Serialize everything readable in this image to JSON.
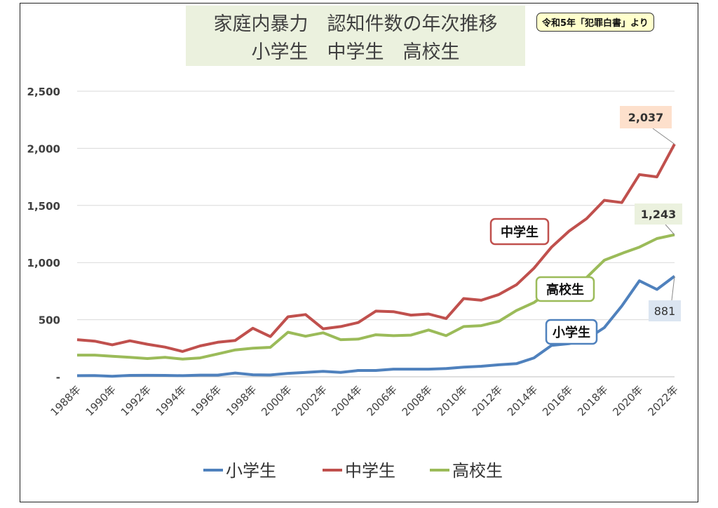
{
  "title_line1": "家庭内暴力　認知件数の年次推移",
  "title_line2": "小学生　中学生　高校生",
  "source_note": "令和5年「犯罪白書」より",
  "colors": {
    "elementary": "#4f81bd",
    "junior_high": "#c0504d",
    "high_school": "#9bbb59"
  },
  "chart_data": {
    "type": "line",
    "title": "家庭内暴力　認知件数の年次推移",
    "subtitle": "小学生　中学生　高校生",
    "x": [
      1988,
      1989,
      1990,
      1991,
      1992,
      1993,
      1994,
      1995,
      1996,
      1997,
      1998,
      1999,
      2000,
      2001,
      2002,
      2003,
      2004,
      2005,
      2006,
      2007,
      2008,
      2009,
      2010,
      2011,
      2012,
      2013,
      2014,
      2015,
      2016,
      2017,
      2018,
      2019,
      2020,
      2021,
      2022
    ],
    "tick_labels": [
      "1988年",
      "1990年",
      "1992年",
      "1994年",
      "1996年",
      "1998年",
      "2000年",
      "2002年",
      "2004年",
      "2006年",
      "2008年",
      "2010年",
      "2012年",
      "2014年",
      "2016年",
      "2018年",
      "2020年",
      "2022年"
    ],
    "y_ticks": [
      "-",
      "500",
      "1,000",
      "1,500",
      "2,000",
      "2,500"
    ],
    "ylim": [
      0,
      2500
    ],
    "grid": true,
    "legend_position": "bottom",
    "series": [
      {
        "name": "小学生",
        "key": "elementary",
        "values": [
          10,
          11,
          5,
          12,
          13,
          12,
          10,
          15,
          15,
          33,
          18,
          16,
          30,
          38,
          47,
          38,
          55,
          55,
          67,
          67,
          67,
          72,
          85,
          92,
          105,
          115,
          165,
          275,
          290,
          330,
          430,
          620,
          840,
          765,
          881
        ]
      },
      {
        "name": "中学生",
        "key": "junior_high",
        "values": [
          325,
          312,
          280,
          315,
          285,
          260,
          222,
          270,
          302,
          318,
          425,
          352,
          525,
          545,
          420,
          440,
          475,
          575,
          570,
          540,
          550,
          510,
          685,
          670,
          720,
          805,
          950,
          1135,
          1275,
          1385,
          1545,
          1525,
          1770,
          1750,
          2037
        ]
      },
      {
        "name": "高校生",
        "key": "high_school",
        "values": [
          190,
          190,
          180,
          170,
          160,
          170,
          155,
          165,
          200,
          235,
          250,
          258,
          390,
          355,
          385,
          325,
          330,
          368,
          360,
          365,
          410,
          360,
          440,
          448,
          485,
          580,
          650,
          760,
          800,
          870,
          1020,
          1080,
          1135,
          1210,
          1243
        ]
      }
    ],
    "annotations": [
      {
        "text": "2,037",
        "series": "junior_high"
      },
      {
        "text": "1,243",
        "series": "high_school"
      },
      {
        "text": "881",
        "series": "elementary"
      }
    ],
    "series_callouts": [
      {
        "text": "中学生",
        "series": "junior_high"
      },
      {
        "text": "高校生",
        "series": "high_school"
      },
      {
        "text": "小学生",
        "series": "elementary"
      }
    ]
  }
}
